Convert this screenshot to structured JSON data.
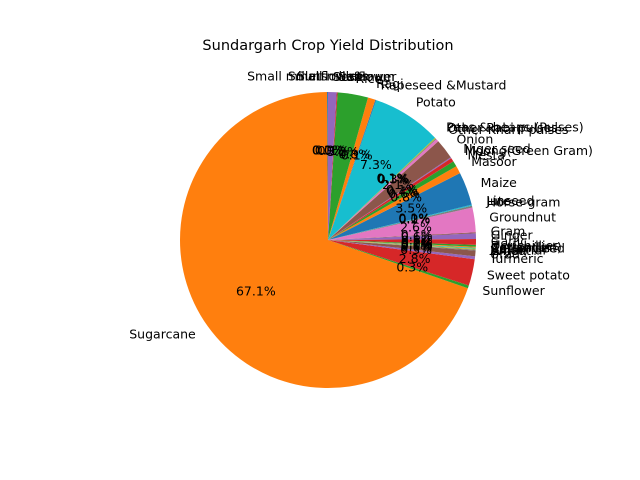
{
  "chart_data": {
    "type": "pie",
    "title": "Sundargarh Crop Yield Distribution",
    "start_angle": 90,
    "direction": "counterclockwise",
    "autopct_format": "{:.1f}%",
    "colors": [
      "#1f77b4",
      "#ff7f0e",
      "#2ca02c",
      "#d62728",
      "#9467bd",
      "#8c564b",
      "#e377c2",
      "#7f7f7f",
      "#bcbd22",
      "#17becf"
    ],
    "slices": [
      {
        "label": "Small millets",
        "value": 0.1
      },
      {
        "label": "Sugarcane",
        "value": 67.1
      },
      {
        "label": "Sunflower",
        "value": 0.3
      },
      {
        "label": "Sweet potato",
        "value": 2.8
      },
      {
        "label": "Turmeric",
        "value": 0.3
      },
      {
        "label": "Urad",
        "value": 0.6
      },
      {
        "label": "Wheat",
        "value": 0.0
      },
      {
        "label": "Arhar/Tur",
        "value": 0.1
      },
      {
        "label": "Bajra",
        "value": 0.1
      },
      {
        "label": "Castor seed",
        "value": 0.1
      },
      {
        "label": "Coriander",
        "value": 0.0
      },
      {
        "label": "Cotton(lint)",
        "value": 0.1
      },
      {
        "label": "Dry chillies",
        "value": 0.2
      },
      {
        "label": "Garlic",
        "value": 0.6
      },
      {
        "label": "Ginger",
        "value": 0.6
      },
      {
        "label": "Gram",
        "value": 0.1
      },
      {
        "label": "Groundnut",
        "value": 2.6
      },
      {
        "label": "Horse-gram",
        "value": 0.2
      },
      {
        "label": "Jute",
        "value": 0.0
      },
      {
        "label": "Linseed",
        "value": 0.1
      },
      {
        "label": "Maize",
        "value": 3.5
      },
      {
        "label": "Masoor",
        "value": 0.8
      },
      {
        "label": "Mesta",
        "value": 0.6
      },
      {
        "label": "Moong(Green Gram)",
        "value": 0.4
      },
      {
        "label": "Niger seed",
        "value": 0.1
      },
      {
        "label": "Onion",
        "value": 2.1
      },
      {
        "label": "Other Kharif pulses",
        "value": 0.3
      },
      {
        "label": "Other Rabi pulses",
        "value": 0.1
      },
      {
        "label": "Peas & beans (Pulses)",
        "value": 0.1
      },
      {
        "label": "Potato",
        "value": 7.3
      },
      {
        "label": "Rapeseed &Mustard",
        "value": 0.1
      },
      {
        "label": "Ragi",
        "value": 0.8
      },
      {
        "label": "Rice",
        "value": 3.2
      },
      {
        "label": "Safflower",
        "value": 0.1
      },
      {
        "label": "Sesamum",
        "value": 0.9
      },
      {
        "label": "Small millets",
        "value": 0.0
      },
      {
        "label": "Sunflower",
        "value": 0.0
      }
    ]
  }
}
